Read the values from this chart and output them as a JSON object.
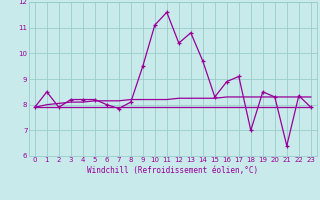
{
  "xlabel": "Windchill (Refroidissement éolien,°C)",
  "bg_color": "#c8eaea",
  "line_color": "#990099",
  "grid_color": "#99cccc",
  "x": [
    0,
    1,
    2,
    3,
    4,
    5,
    6,
    7,
    8,
    9,
    10,
    11,
    12,
    13,
    14,
    15,
    16,
    17,
    18,
    19,
    20,
    21,
    22,
    23
  ],
  "y_wind": [
    7.9,
    8.5,
    7.9,
    8.2,
    8.2,
    8.2,
    8.0,
    7.85,
    8.1,
    9.5,
    11.1,
    11.6,
    10.4,
    10.8,
    9.7,
    8.3,
    8.9,
    9.1,
    7.0,
    8.5,
    8.3,
    6.4,
    8.35,
    7.9
  ],
  "y_trend1": [
    7.9,
    8.0,
    8.05,
    8.1,
    8.1,
    8.15,
    8.15,
    8.15,
    8.2,
    8.2,
    8.2,
    8.2,
    8.25,
    8.25,
    8.25,
    8.25,
    8.3,
    8.3,
    8.3,
    8.3,
    8.3,
    8.3,
    8.3,
    8.3
  ],
  "y_trend2": [
    7.9,
    7.9,
    7.9,
    7.9,
    7.9,
    7.9,
    7.9,
    7.9,
    7.9,
    7.9,
    7.9,
    7.9,
    7.9,
    7.9,
    7.9,
    7.9,
    7.9,
    7.9,
    7.9,
    7.9,
    7.9,
    7.9,
    7.9,
    7.9
  ],
  "ylim": [
    6,
    12
  ],
  "yticks": [
    6,
    7,
    8,
    9,
    10,
    11,
    12
  ],
  "xticks": [
    0,
    1,
    2,
    3,
    4,
    5,
    6,
    7,
    8,
    9,
    10,
    11,
    12,
    13,
    14,
    15,
    16,
    17,
    18,
    19,
    20,
    21,
    22,
    23
  ],
  "xlim": [
    -0.5,
    23.5
  ]
}
